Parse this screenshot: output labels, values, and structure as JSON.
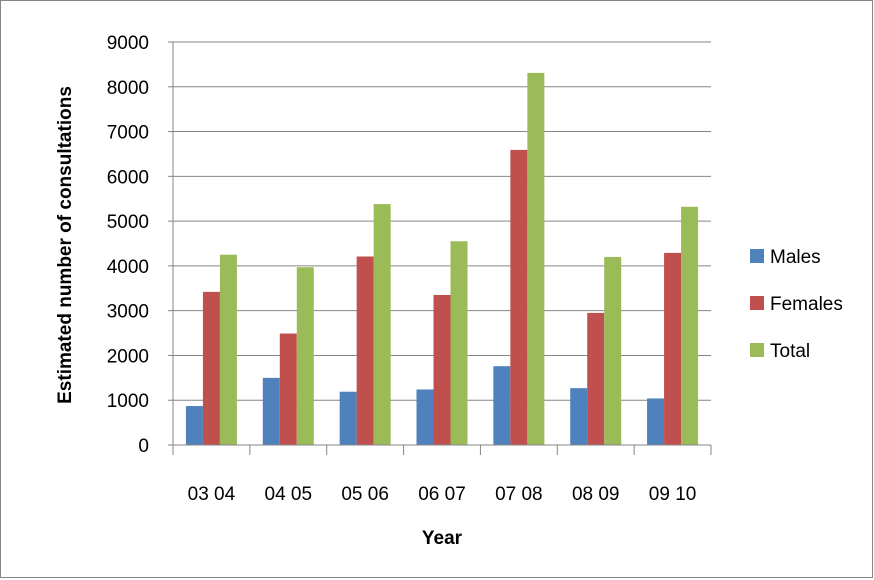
{
  "chart_data": {
    "type": "bar",
    "categories": [
      "03 04",
      "04 05",
      "05 06",
      "06 07",
      "07 08",
      "08 09",
      "09 10"
    ],
    "series": [
      {
        "name": "Males",
        "color": "#4F81BD",
        "values": [
          870,
          1500,
          1190,
          1240,
          1760,
          1270,
          1040
        ]
      },
      {
        "name": "Females",
        "color": "#C0504D",
        "values": [
          3420,
          2490,
          4210,
          3350,
          6590,
          2950,
          4290
        ]
      },
      {
        "name": "Total",
        "color": "#9BBB59",
        "values": [
          4250,
          3970,
          5380,
          4550,
          8310,
          4200,
          5320
        ]
      }
    ],
    "xlabel": "Year",
    "ylabel": "Estimated number of consultations",
    "ylim": [
      0,
      9000
    ],
    "yticks": [
      0,
      1000,
      2000,
      3000,
      4000,
      5000,
      6000,
      7000,
      8000,
      9000
    ],
    "grid": true,
    "legend_position": "right"
  }
}
